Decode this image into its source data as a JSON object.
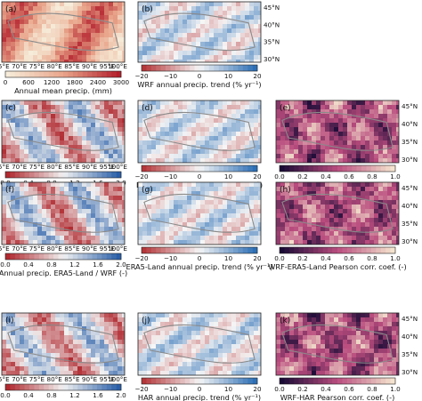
{
  "figure": {
    "map_lon_labels": [
      "65°E",
      "70°E",
      "75°E",
      "80°E",
      "85°E",
      "90°E",
      "95°E",
      "100°E"
    ],
    "map_lat_labels": [
      "45°N",
      "40°N",
      "35°N",
      "30°N"
    ],
    "panels": [
      {
        "letter": "(a)",
        "kind": "precip",
        "cbar_ticks": [
          "0",
          "600",
          "1200",
          "1800",
          "2400",
          "3000"
        ],
        "cbar_label": "Annual mean precip. (mm)"
      },
      {
        "letter": "(b)",
        "kind": "trend",
        "cbar_ticks": [
          "−20",
          "−10",
          "0",
          "10",
          "20"
        ],
        "cbar_label": "WRF annual precip. trend (% yr⁻¹)"
      },
      {
        "letter": "(c)",
        "kind": "ratio",
        "cbar_ticks": [
          "0.0",
          "0.4",
          "0.8",
          "1.2",
          "1.6",
          "2.0"
        ],
        "cbar_label": "Annual precip. ERA5 / WRF (-)"
      },
      {
        "letter": "(d)",
        "kind": "trend",
        "cbar_ticks": [
          "−20",
          "−10",
          "0",
          "10",
          "20"
        ],
        "cbar_label": "ERA5 annual precip. trend (% yr⁻¹)"
      },
      {
        "letter": "(e)",
        "kind": "corr",
        "cbar_ticks": [
          "0.0",
          "0.2",
          "0.4",
          "0.6",
          "0.8",
          "1.0"
        ],
        "cbar_label": "WRF-ERA5 Pearson corr. coef. (-)"
      },
      {
        "letter": "(f)",
        "kind": "ratio",
        "cbar_ticks": [
          "0.0",
          "0.4",
          "0.8",
          "1.2",
          "1.6",
          "2.0"
        ],
        "cbar_label": "Annual precip. ERA5-Land / WRF (-)"
      },
      {
        "letter": "(g)",
        "kind": "trend",
        "cbar_ticks": [
          "−20",
          "−10",
          "0",
          "10",
          "20"
        ],
        "cbar_label": "ERA5-Land annual precip. trend (% yr⁻¹)"
      },
      {
        "letter": "(h)",
        "kind": "corr",
        "cbar_ticks": [
          "0.0",
          "0.2",
          "0.4",
          "0.6",
          "0.8",
          "1.0"
        ],
        "cbar_label": "WRF-ERA5-Land Pearson corr. coef. (-)"
      },
      {
        "letter": "(i)",
        "kind": "ratio",
        "cbar_ticks": [
          "0.0",
          "0.4",
          "0.8",
          "1.2",
          "1.6",
          "2.0"
        ],
        "cbar_label": "Annual precip. HAR / WRF (-)"
      },
      {
        "letter": "(j)",
        "kind": "trend",
        "cbar_ticks": [
          "−20",
          "−10",
          "0",
          "10",
          "20"
        ],
        "cbar_label": "HAR annual precip. trend (% yr⁻¹)"
      },
      {
        "letter": "(k)",
        "kind": "corr",
        "cbar_ticks": [
          "0.0",
          "0.2",
          "0.4",
          "0.6",
          "0.8",
          "1.0"
        ],
        "cbar_label": "WRF-HAR Pearson corr. coef. (-)"
      }
    ],
    "colors": {
      "precip_low": "#f6ecd9",
      "precip_high": "#b3202c",
      "trend_neg": "#b4373a",
      "trend_pos": "#2d6fb5",
      "corr_low": "#1a0b36",
      "corr_mid": "#b94c7e",
      "corr_high": "#f4e3ce",
      "outline": "#8a8a8a"
    }
  }
}
